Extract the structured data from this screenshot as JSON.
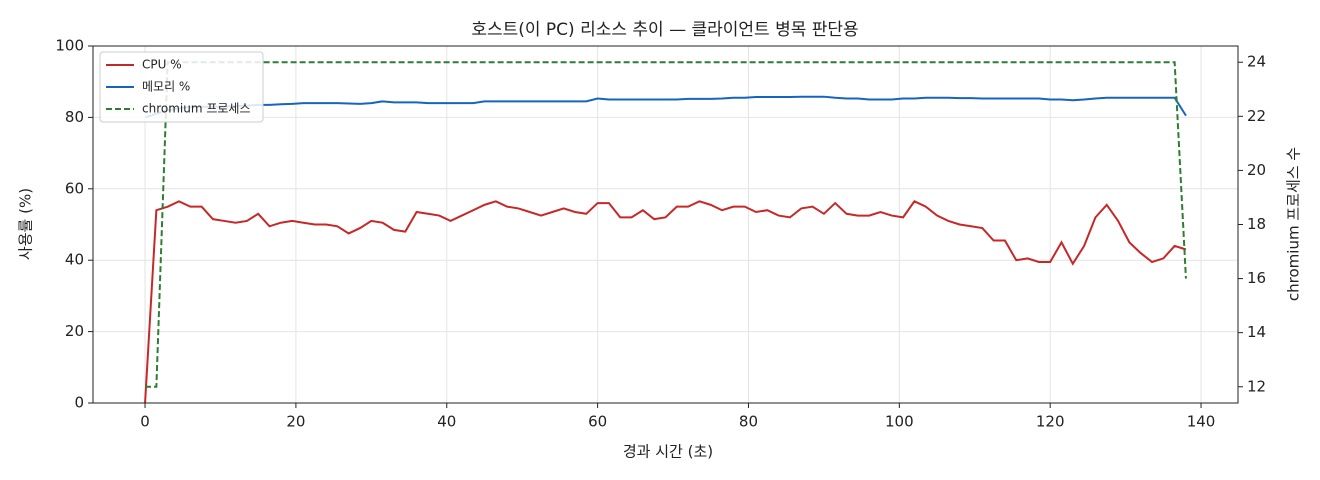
{
  "chart_data": {
    "type": "line",
    "title": "호스트(이 PC) 리소스 추이 — 클라이언트 병목 판단용",
    "x_label": "경과 시간 (초)",
    "y_label": "사용률 (%)",
    "y2_label": "chromium 프로세스 수",
    "x": [
      0,
      1.5,
      3,
      4.5,
      6,
      7.5,
      9,
      10.5,
      12,
      13.5,
      15,
      16.5,
      18,
      19.5,
      21,
      22.5,
      24,
      25.5,
      27,
      28.5,
      30,
      31.5,
      33,
      34.5,
      36,
      37.5,
      39,
      40.5,
      42,
      43.5,
      45,
      46.5,
      48,
      49.5,
      51,
      52.5,
      54,
      55.5,
      57,
      58.5,
      60,
      61.5,
      63,
      64.5,
      66,
      67.5,
      69,
      70.5,
      72,
      73.5,
      75,
      76.5,
      78,
      79.5,
      81,
      82.5,
      84,
      85.5,
      87,
      88.5,
      90,
      91.5,
      93,
      94.5,
      96,
      97.5,
      99,
      100.5,
      102,
      103.5,
      105,
      106.5,
      108,
      109.5,
      111,
      112.5,
      114,
      115.5,
      117,
      118.5,
      120,
      121.5,
      123,
      124.5,
      126,
      127.5,
      129,
      130.5,
      132,
      133.5,
      135,
      136.5,
      138
    ],
    "series": [
      {
        "name": "CPU %",
        "color": "#c62828",
        "linestyle": "solid",
        "values": [
          0,
          54,
          55,
          56.5,
          55,
          55,
          51.5,
          51,
          50.5,
          51,
          53,
          49.5,
          50.5,
          51,
          50.5,
          50,
          50,
          49.5,
          47.5,
          49,
          51,
          50.5,
          48.5,
          48,
          53.5,
          53,
          52.5,
          51,
          52.5,
          54,
          55.5,
          56.5,
          55,
          54.5,
          53.5,
          52.5,
          53.5,
          54.5,
          53.5,
          53,
          56,
          56,
          52,
          52,
          54,
          51.5,
          52,
          55,
          55,
          56.5,
          55.5,
          54,
          55,
          55,
          53.5,
          54,
          52.5,
          52,
          54.5,
          55,
          53,
          56,
          53,
          52.5,
          52.5,
          53.5,
          52.5,
          52,
          56.5,
          55,
          52.5,
          51,
          50,
          49.5,
          49,
          45.5,
          45.5,
          40,
          40.5,
          39.5,
          39.5,
          45,
          39,
          44,
          52,
          55.5,
          51,
          45,
          42,
          39.5,
          40.5,
          44,
          43
        ]
      },
      {
        "name": "메모리 %",
        "color": "#1565c0",
        "linestyle": "solid",
        "values": [
          80,
          81,
          82,
          82.5,
          83,
          83,
          83,
          83,
          83.2,
          83.3,
          83.5,
          83.5,
          83.7,
          83.8,
          84,
          84,
          84,
          84,
          83.9,
          83.8,
          84,
          84.5,
          84.2,
          84.2,
          84.2,
          84,
          84,
          84,
          84,
          84,
          84.5,
          84.5,
          84.5,
          84.5,
          84.5,
          84.5,
          84.5,
          84.5,
          84.5,
          84.5,
          85.3,
          85,
          85,
          85,
          85,
          85,
          85,
          85,
          85.2,
          85.2,
          85.2,
          85.3,
          85.5,
          85.5,
          85.7,
          85.7,
          85.7,
          85.7,
          85.8,
          85.8,
          85.8,
          85.5,
          85.3,
          85.3,
          85,
          85,
          85,
          85.3,
          85.3,
          85.5,
          85.5,
          85.5,
          85.4,
          85.4,
          85.3,
          85.3,
          85.3,
          85.3,
          85.3,
          85.3,
          85,
          85,
          84.8,
          85,
          85.3,
          85.5,
          85.5,
          85.5,
          85.5,
          85.5,
          85.5,
          85.5,
          80.5
        ]
      },
      {
        "name": "chromium 프로세스",
        "color": "#2e7d32",
        "linestyle": "dashed",
        "axis": "y2",
        "values": [
          12,
          12,
          24,
          24,
          24,
          24,
          24,
          24,
          24,
          24,
          24,
          24,
          24,
          24,
          24,
          24,
          24,
          24,
          24,
          24,
          24,
          24,
          24,
          24,
          24,
          24,
          24,
          24,
          24,
          24,
          24,
          24,
          24,
          24,
          24,
          24,
          24,
          24,
          24,
          24,
          24,
          24,
          24,
          24,
          24,
          24,
          24,
          24,
          24,
          24,
          24,
          24,
          24,
          24,
          24,
          24,
          24,
          24,
          24,
          24,
          24,
          24,
          24,
          24,
          24,
          24,
          24,
          24,
          24,
          24,
          24,
          24,
          24,
          24,
          24,
          24,
          24,
          24,
          24,
          24,
          24,
          24,
          24,
          24,
          24,
          24,
          24,
          24,
          24,
          24,
          24,
          24,
          16
        ]
      }
    ],
    "xlim": [
      -6.9,
      144.9
    ],
    "xticks": [
      0,
      20,
      40,
      60,
      80,
      100,
      120,
      140
    ],
    "ylim": [
      0,
      100
    ],
    "yticks": [
      0,
      20,
      40,
      60,
      80,
      100
    ],
    "y2lim": [
      11.4,
      24.6
    ],
    "y2ticks": [
      12,
      14,
      16,
      18,
      20,
      22,
      24
    ],
    "grid": true,
    "legend": "upper left"
  }
}
